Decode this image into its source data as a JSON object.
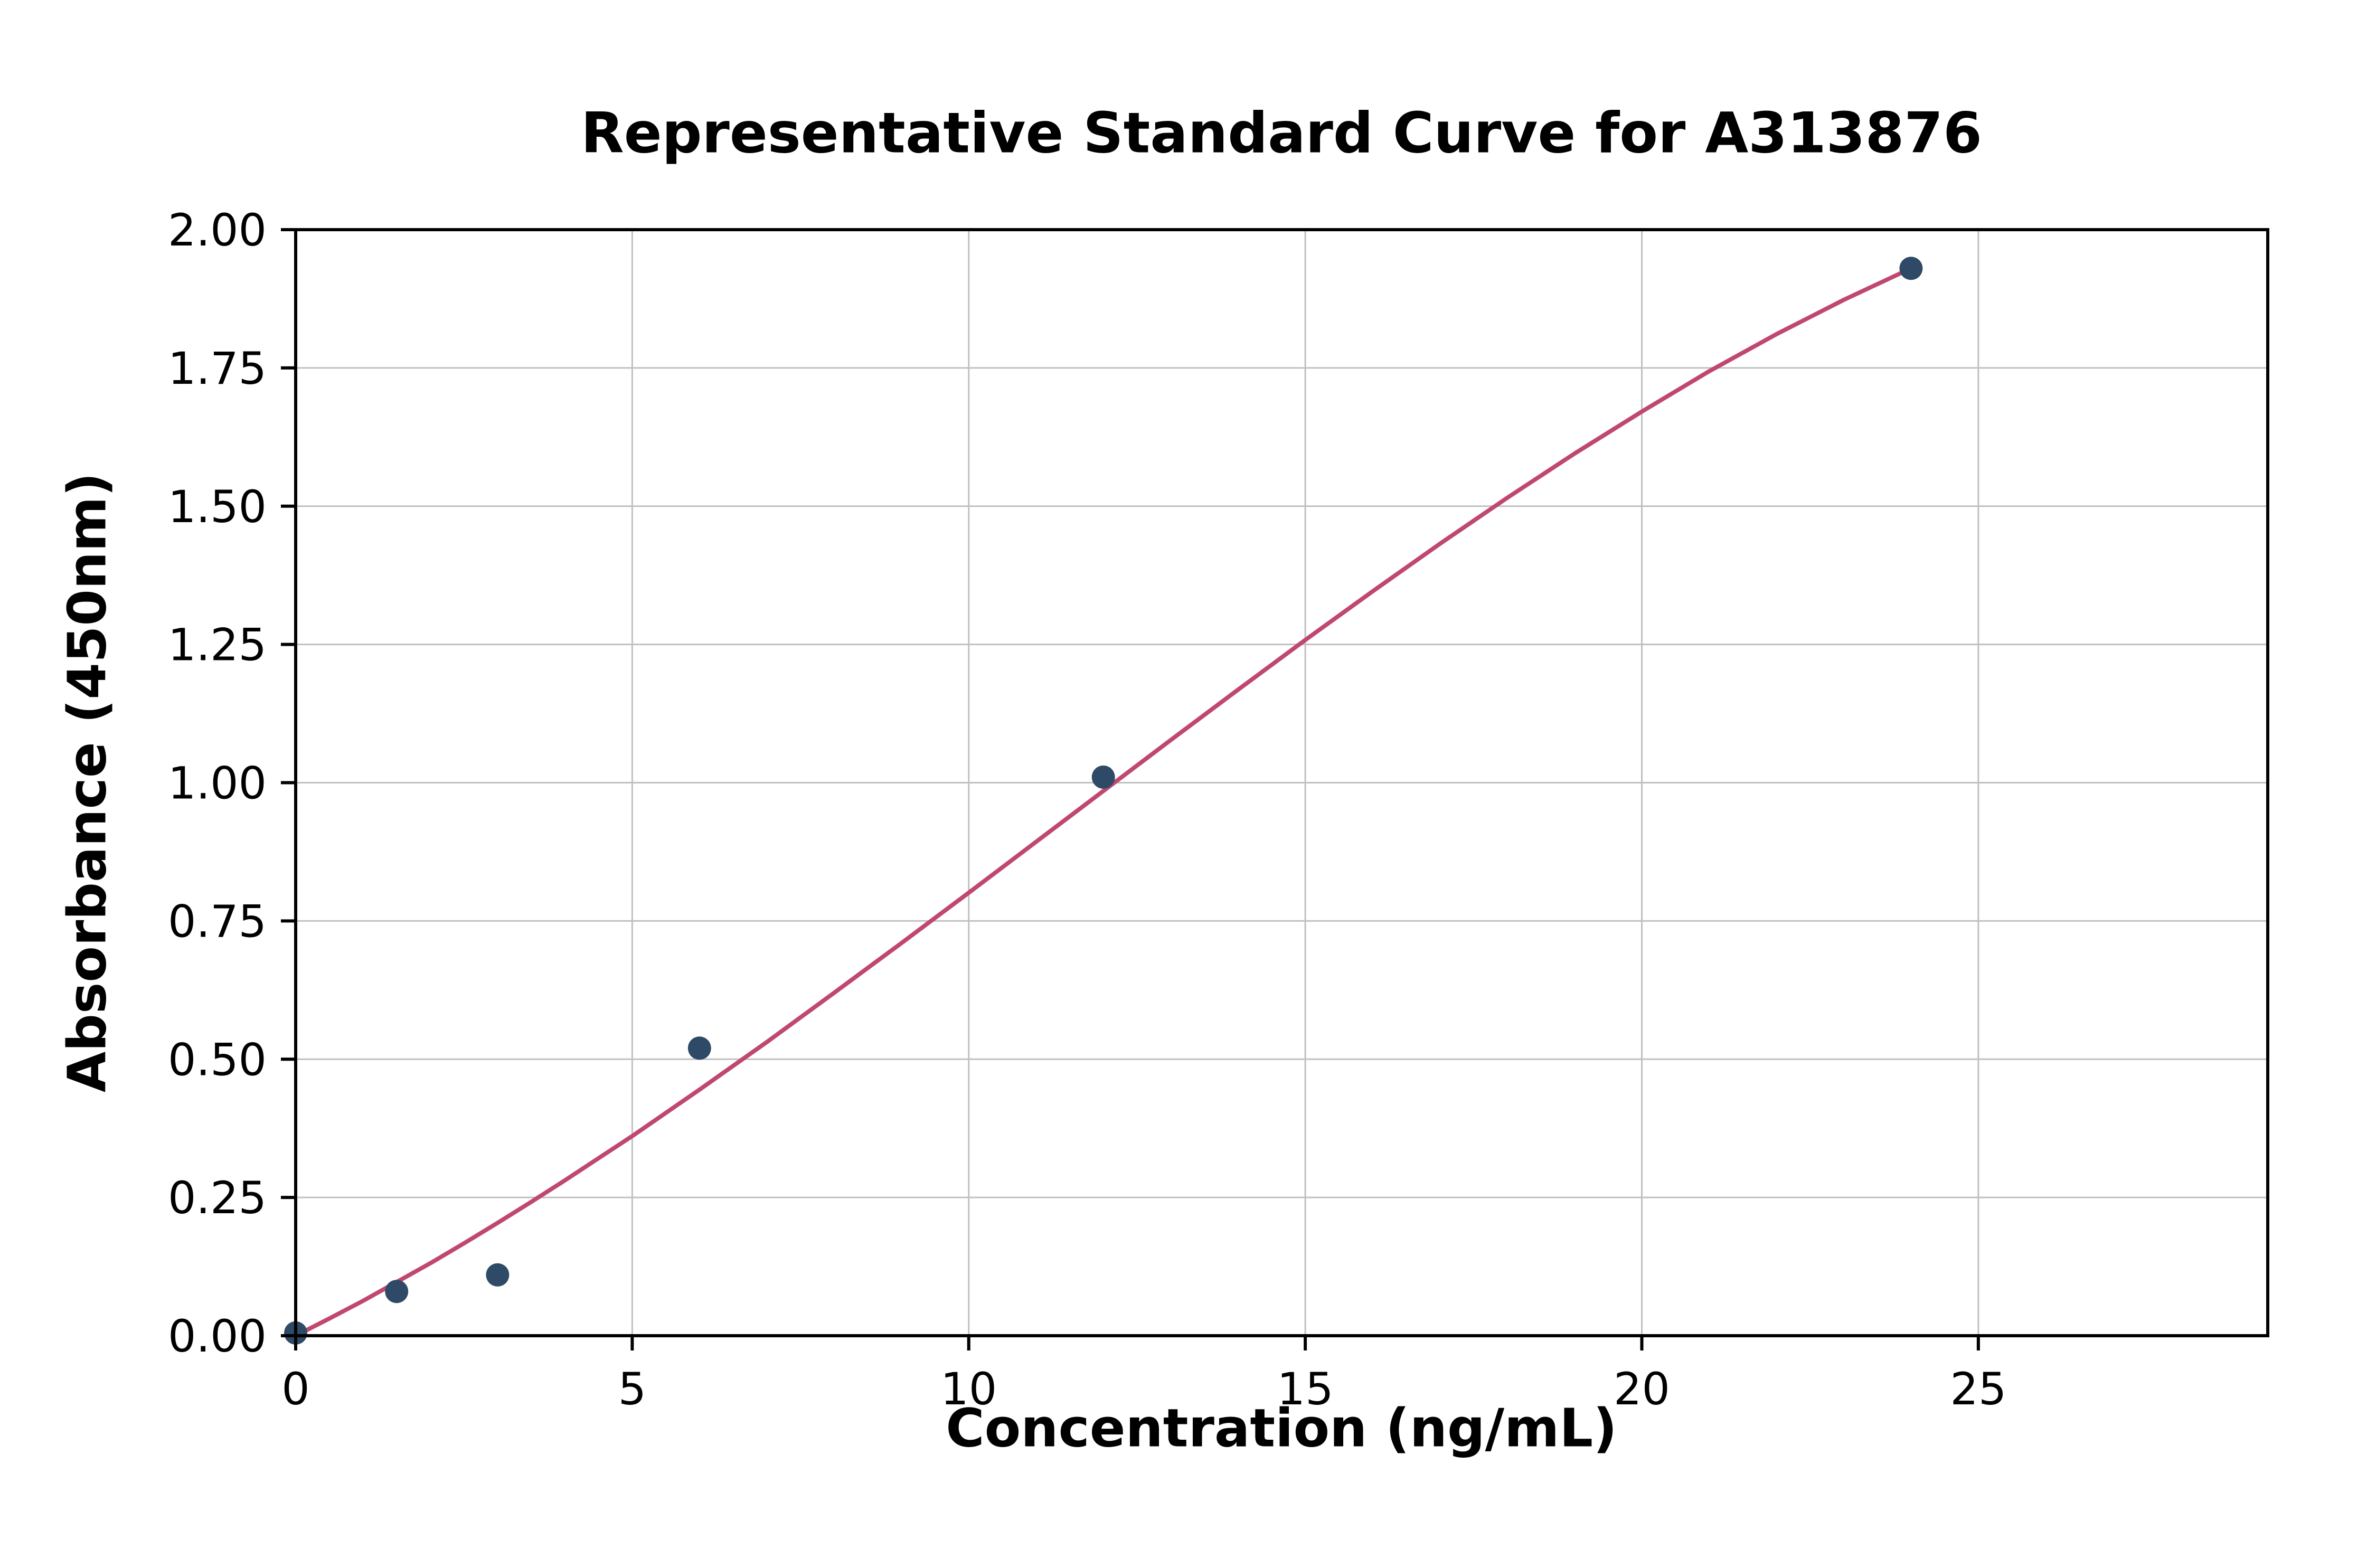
{
  "page": {
    "background_color": "#ffffff"
  },
  "chart_data": {
    "type": "scatter",
    "title": "Representative Standard Curve for A313876",
    "xlabel": "Concentration (ng/mL)",
    "ylabel": "Absorbance (450nm)",
    "xlim": [
      0,
      29.3
    ],
    "ylim": [
      0,
      2.0
    ],
    "grid": true,
    "grid_color": "#c0c0c0",
    "axis_color": "#000000",
    "x_ticks": [
      0,
      5,
      10,
      15,
      20,
      25
    ],
    "x_tick_labels": [
      "0",
      "5",
      "10",
      "15",
      "20",
      "25"
    ],
    "y_ticks": [
      0,
      0.25,
      0.5,
      0.75,
      1.0,
      1.25,
      1.5,
      1.75,
      2.0
    ],
    "y_tick_labels": [
      "0.00",
      "0.25",
      "0.50",
      "0.75",
      "1.00",
      "1.25",
      "1.50",
      "1.75",
      "2.00"
    ],
    "points": {
      "name": "standard-points",
      "color": "#2e4a66",
      "x": [
        0,
        1.5,
        3,
        6,
        12,
        24
      ],
      "y": [
        0.005,
        0.08,
        0.11,
        0.52,
        1.01,
        1.93
      ]
    },
    "fit_curve": {
      "name": "fitted-curve",
      "color": "#c0486e",
      "x": [
        0,
        0.5,
        1,
        1.5,
        2,
        2.5,
        3,
        3.5,
        4,
        4.5,
        5,
        5.5,
        6,
        7,
        8,
        9,
        10,
        11,
        12,
        13,
        14,
        15,
        16,
        17,
        18,
        19,
        20,
        21,
        22,
        23,
        24
      ],
      "y": [
        0.0,
        0.031,
        0.063,
        0.097,
        0.131,
        0.167,
        0.204,
        0.242,
        0.281,
        0.321,
        0.361,
        0.403,
        0.445,
        0.531,
        0.62,
        0.71,
        0.801,
        0.893,
        0.985,
        1.077,
        1.168,
        1.258,
        1.346,
        1.432,
        1.515,
        1.595,
        1.671,
        1.744,
        1.811,
        1.873,
        1.93
      ]
    }
  }
}
